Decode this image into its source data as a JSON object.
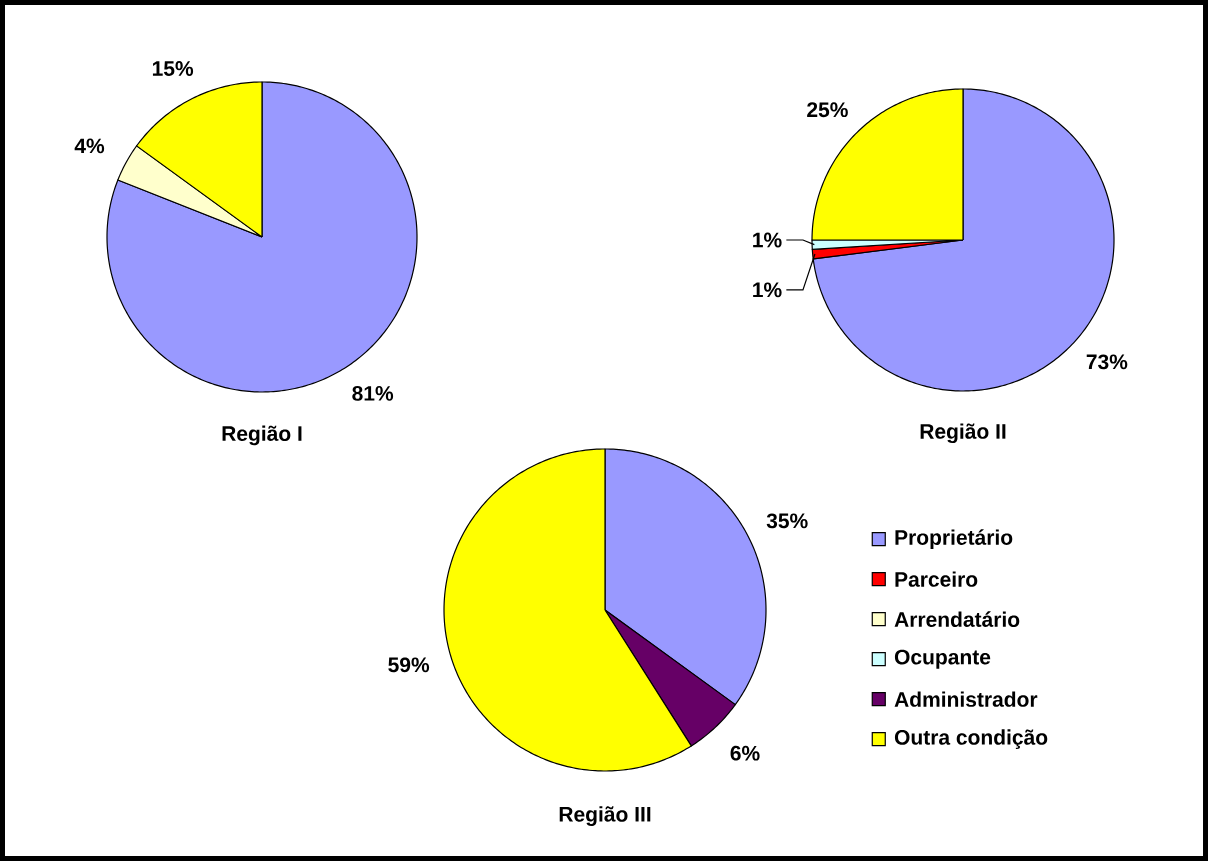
{
  "chart_data": [
    {
      "type": "pie",
      "title": "Região I",
      "categories": [
        null,
        null,
        null
      ],
      "values": [
        81,
        4,
        15
      ],
      "colors": [
        "#9999ff",
        "#ffffcc",
        "#ffff00"
      ],
      "value_labels": [
        "81%",
        "4%",
        "15%"
      ]
    },
    {
      "type": "pie",
      "title": "Região II",
      "categories": [
        null,
        null,
        null,
        null
      ],
      "values": [
        73,
        1,
        1,
        25
      ],
      "colors": [
        "#9999ff",
        "#ff0000",
        "#ccffff",
        "#ffff00"
      ],
      "value_labels": [
        "73%",
        "1%",
        "1%",
        "25%"
      ]
    },
    {
      "type": "pie",
      "title": "Região III",
      "categories": [
        "Proprietário",
        "Parceiro",
        "Arrendatário",
        "Ocupante",
        "Administrador",
        "Outra condição"
      ],
      "values": [
        35,
        0,
        0,
        0,
        6,
        59
      ],
      "colors": [
        "#9999ff",
        "#ff0000",
        "#ffffcc",
        "#ccffff",
        "#660066",
        "#ffff00"
      ],
      "value_labels": [
        "35%",
        null,
        null,
        null,
        "6%",
        "59%"
      ],
      "legend": "right"
    }
  ]
}
